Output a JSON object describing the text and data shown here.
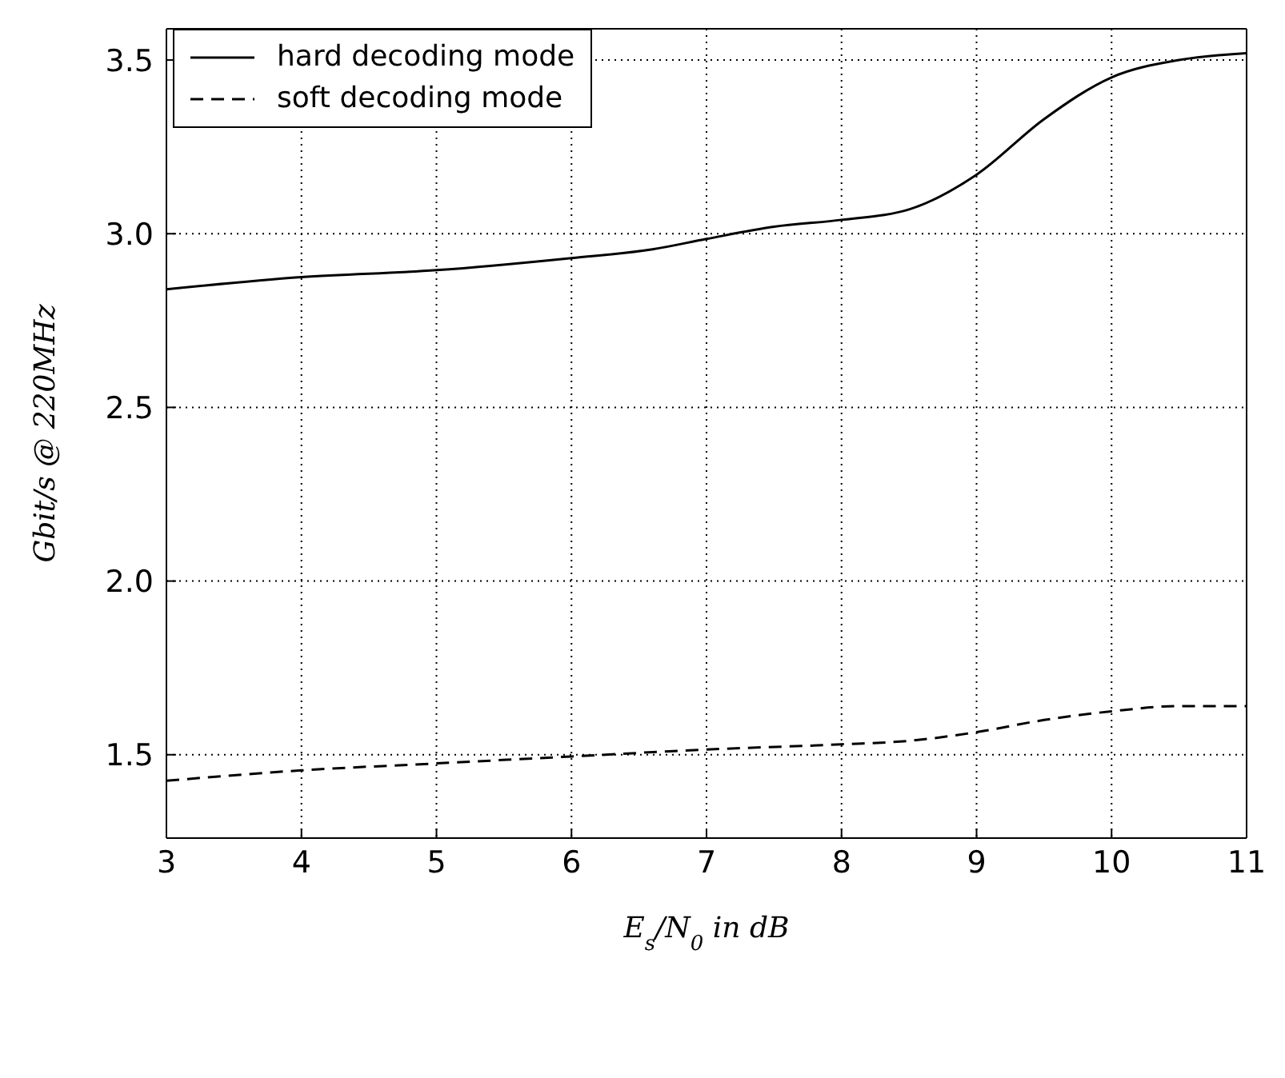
{
  "chart_data": {
    "type": "line",
    "xlabel": "E$_{s}$/N$_{0}$ in dB",
    "ylabel": "Gbit/s @ 220MHz",
    "xlim": [
      3,
      11
    ],
    "xticks": [
      3,
      4,
      5,
      6,
      7,
      8,
      9,
      10,
      11
    ],
    "ylim": [
      1.26,
      3.59
    ],
    "yticks": [
      1.5,
      {
        "value": 2,
        "label": "2.0"
      },
      2.5,
      {
        "value": 3,
        "label": "3.0"
      },
      3.5
    ],
    "grid": true,
    "legend": "top left",
    "marker": "none",
    "series": [
      {
        "name": "hard decoding mode",
        "color": "#000000",
        "line_style": "solid",
        "x": [
          3,
          4,
          5,
          6,
          6.6,
          7,
          7.5,
          8,
          8.5,
          9,
          9.5,
          10,
          10.5,
          11
        ],
        "values": [
          2.84,
          2.875,
          2.895,
          2.93,
          2.955,
          2.985,
          3.02,
          3.04,
          3.07,
          3.17,
          3.33,
          3.45,
          3.5,
          3.52
        ]
      },
      {
        "name": "soft decoding mode",
        "color": "#000000",
        "line_style": "dashed",
        "x": [
          3,
          4,
          5,
          6,
          7,
          8,
          8.5,
          9,
          9.5,
          10,
          10.5,
          11
        ],
        "values": [
          1.425,
          1.455,
          1.475,
          1.495,
          1.515,
          1.53,
          1.54,
          1.565,
          1.6,
          1.625,
          1.64,
          1.64
        ]
      }
    ]
  }
}
